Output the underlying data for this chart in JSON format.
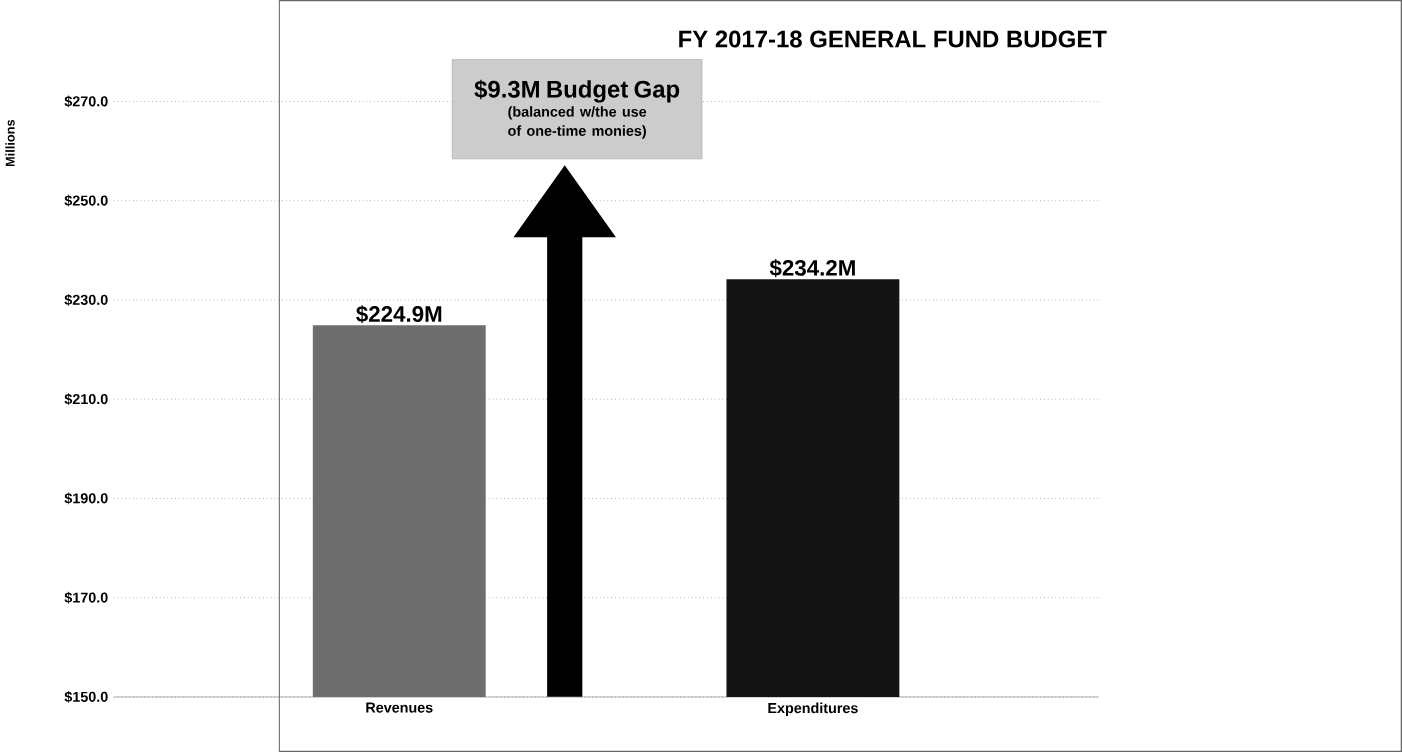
{
  "chart_data": {
    "type": "bar",
    "title": "FY 2017-18 GENERAL FUND BUDGET",
    "ylabel": "Millions",
    "categories": [
      "Revenues",
      "Expenditures"
    ],
    "values": [
      224.9,
      234.2
    ],
    "colors": [
      "#6e6e6e",
      "#141414"
    ],
    "value_labels": [
      "$224.9M",
      "$234.2M"
    ],
    "ylim": [
      150,
      270
    ],
    "yticks": [
      {
        "value": 150,
        "label": "$150.0"
      },
      {
        "value": 170,
        "label": "$170.0"
      },
      {
        "value": 190,
        "label": "$190.0"
      },
      {
        "value": 210,
        "label": "$210.0"
      },
      {
        "value": 230,
        "label": "$230.0"
      },
      {
        "value": 250,
        "label": "$250.0"
      },
      {
        "value": 270,
        "label": "$270.0"
      }
    ],
    "grid": "y",
    "annotations": [
      "$9.3M Budget Gap",
      "(balanced w/the use of one-time monies)"
    ]
  }
}
